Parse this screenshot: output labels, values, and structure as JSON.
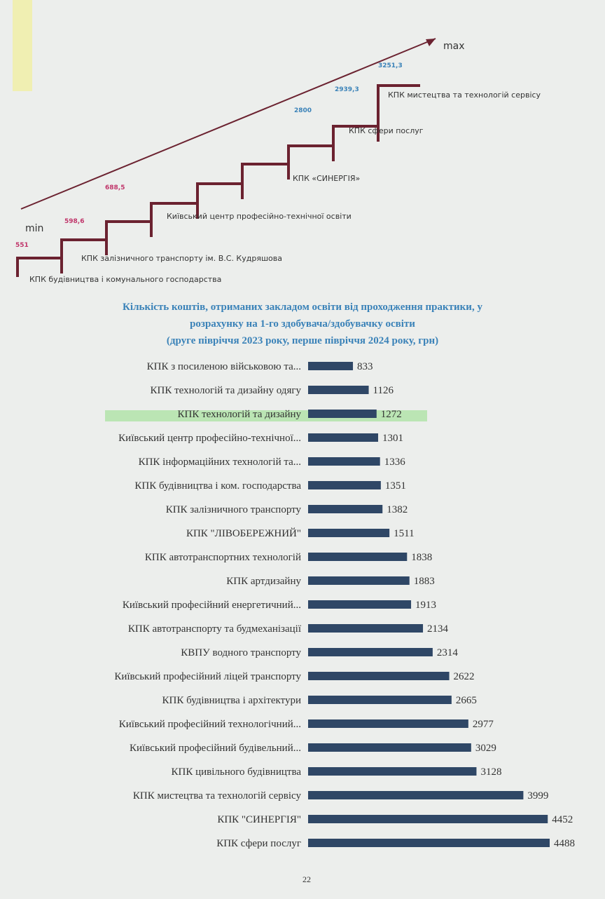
{
  "diagram": {
    "max_label": "max",
    "min_label": "min",
    "steps": [
      {
        "label": "КПК будівництва і комунального господарства",
        "value": "551"
      },
      {
        "label": "КПК залізничного транспорту ім. В.С. Кудряшова",
        "value": "598,6"
      },
      {
        "label": "Київський центр професійно-технічної освіти",
        "value": "688,5"
      },
      {
        "label": "КПК «СИНЕРГІЯ»",
        "value": "2800"
      },
      {
        "label": "КПК сфери послуг",
        "value": "2939,3"
      },
      {
        "label": "КПК мистецтва та технологій сервісу",
        "value": "3251,3"
      }
    ]
  },
  "chart_data": {
    "type": "bar",
    "orientation": "horizontal",
    "color": "#2f4766",
    "title_lines": [
      "Кількість коштів, отриманих закладом освіти від проходження практики, у",
      "розрахунку на 1-го здобувача/здобувачку освіти",
      "(друге півріччя 2023 року, перше півріччя 2024 року, грн)"
    ],
    "categories": [
      "КПК з посиленою військовою та...",
      "КПК технологій та дизайну одягу",
      "КПК технологій та дизайну",
      "Київський центр професійно-технічної...",
      "КПК інформаційних технологій та...",
      "КПК будівництва і ком. господарства",
      "КПК залізничного транспорту",
      "КПК \"ЛІВОБЕРЕЖНИЙ\"",
      "КПК автотранспортних технологій",
      "КПК артдизайну",
      "Київський професійний енергетичний...",
      "КПК автотранспорту та будмеханізації",
      "КВПУ водного транспорту",
      "Київський професійний ліцей транспорту",
      "КПК будівництва і архітектури",
      "Київський професійний технологічний...",
      "Київський професійний будівельний...",
      "КПК цивільного будівництва",
      "КПК мистецтва та технологій сервісу",
      "КПК \"СИНЕРГІЯ\"",
      "КПК сфери послуг"
    ],
    "values": [
      833,
      1126,
      1272,
      1301,
      1336,
      1351,
      1382,
      1511,
      1838,
      1883,
      1913,
      2134,
      2314,
      2622,
      2665,
      2977,
      3029,
      3128,
      3999,
      4452,
      4488
    ]
  },
  "page_number": "22"
}
